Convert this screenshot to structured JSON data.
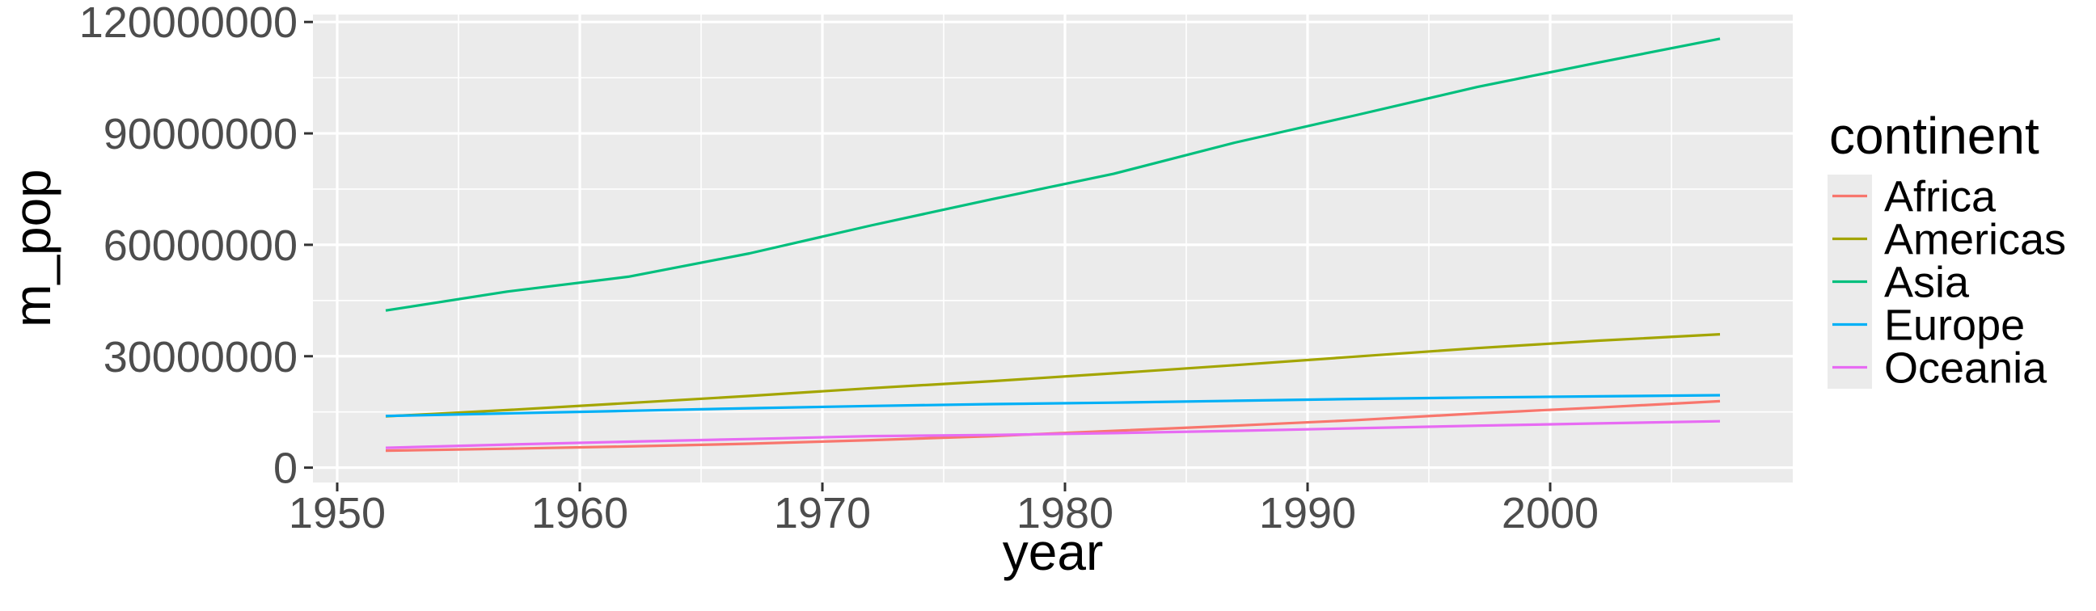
{
  "chart_data": {
    "type": "line",
    "title": "",
    "xlabel": "year",
    "ylabel": "m_pop",
    "xlim": [
      1949,
      2010
    ],
    "ylim": [
      -4000000,
      122000000
    ],
    "x_ticks": [
      1950,
      1960,
      1970,
      1980,
      1990,
      2000
    ],
    "y_ticks": [
      0,
      30000000,
      60000000,
      90000000,
      120000000
    ],
    "x_tick_labels": [
      "1950",
      "1960",
      "1970",
      "1980",
      "1990",
      "2000"
    ],
    "y_tick_labels": [
      "0",
      "30000000",
      "60000000",
      "90000000",
      "120000000"
    ],
    "grid": true,
    "legend": {
      "title": "continent",
      "position": "right"
    },
    "x": [
      1952,
      1957,
      1962,
      1967,
      1972,
      1977,
      1982,
      1987,
      1992,
      1997,
      2002,
      2007
    ],
    "series": [
      {
        "name": "Africa",
        "color": "#F8766D",
        "values": [
          4570000,
          5090000,
          5700000,
          6450000,
          7400000,
          8500000,
          9900000,
          11300000,
          12800000,
          14600000,
          16200000,
          17900000
        ]
      },
      {
        "name": "Americas",
        "color": "#A3A500",
        "values": [
          13800000,
          15500000,
          17400000,
          19300000,
          21400000,
          23300000,
          25400000,
          27600000,
          29900000,
          32200000,
          34200000,
          35900000
        ]
      },
      {
        "name": "Asia",
        "color": "#00BF7D",
        "values": [
          42300000,
          47400000,
          51400000,
          57700000,
          65200000,
          72300000,
          79100000,
          87500000,
          94900000,
          102500000,
          109100000,
          115500000
        ]
      },
      {
        "name": "Europe",
        "color": "#00B0F6",
        "values": [
          13900000,
          14600000,
          15300000,
          16000000,
          16600000,
          17100000,
          17500000,
          18000000,
          18500000,
          18900000,
          19200000,
          19500000
        ]
      },
      {
        "name": "Oceania",
        "color": "#E76BF3",
        "values": [
          5340000,
          6200000,
          7000000,
          7700000,
          8500000,
          8800000,
          9300000,
          9900000,
          10600000,
          11300000,
          11900000,
          12500000
        ]
      }
    ]
  }
}
